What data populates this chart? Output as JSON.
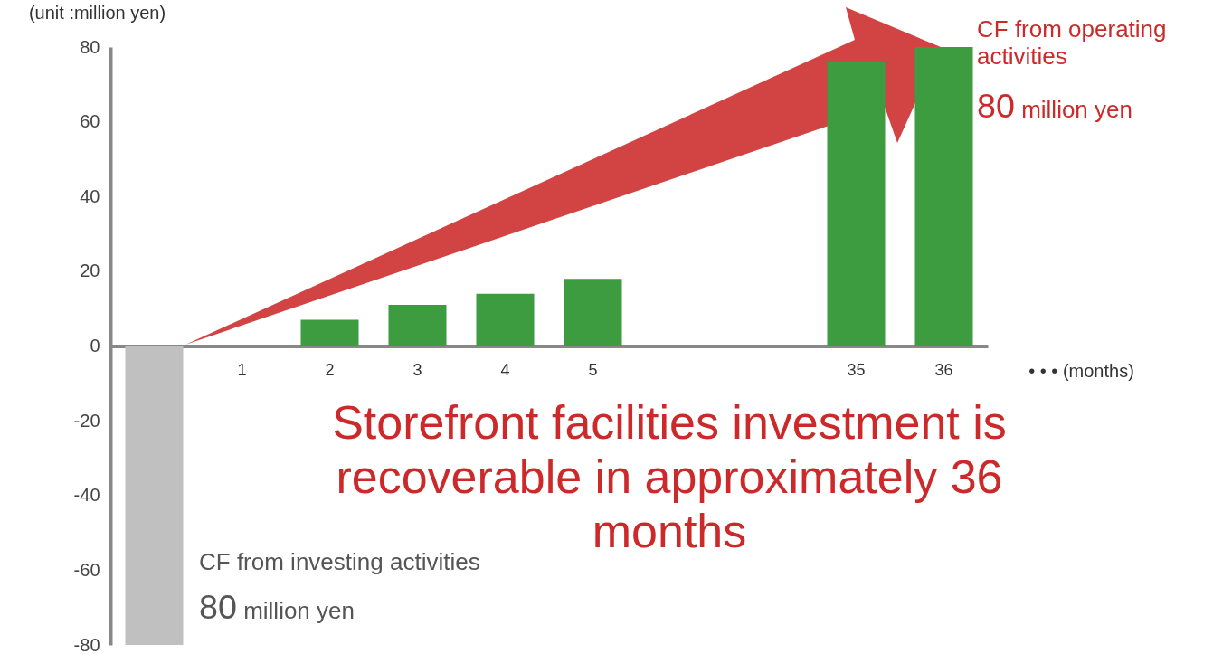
{
  "chart_data": {
    "type": "bar",
    "ylabel": "(unit :million yen)",
    "xlabel": "• • • (months)",
    "categories": [
      null,
      "1",
      "2",
      "3",
      "4",
      "5",
      null,
      null,
      "35",
      "36"
    ],
    "values": [
      -80,
      null,
      7,
      11,
      14,
      18,
      null,
      null,
      76,
      80
    ],
    "colors": [
      "#c0c0c0",
      "#3d9b40",
      "#3d9b40",
      "#3d9b40",
      "#3d9b40",
      "#3d9b40",
      "#3d9b40",
      "#3d9b40",
      "#3d9b40",
      "#3d9b40"
    ],
    "ylim": [
      -80,
      80
    ],
    "yticks": [
      -80,
      -60,
      -40,
      -20,
      0,
      20,
      40,
      60,
      80
    ],
    "grid": false,
    "annotations": [
      "Storefront facilities investment is recoverable in approximately 36 months",
      "CF from operating activities",
      "80 million yen",
      "CF from investing activities",
      "80 million yen"
    ]
  }
}
